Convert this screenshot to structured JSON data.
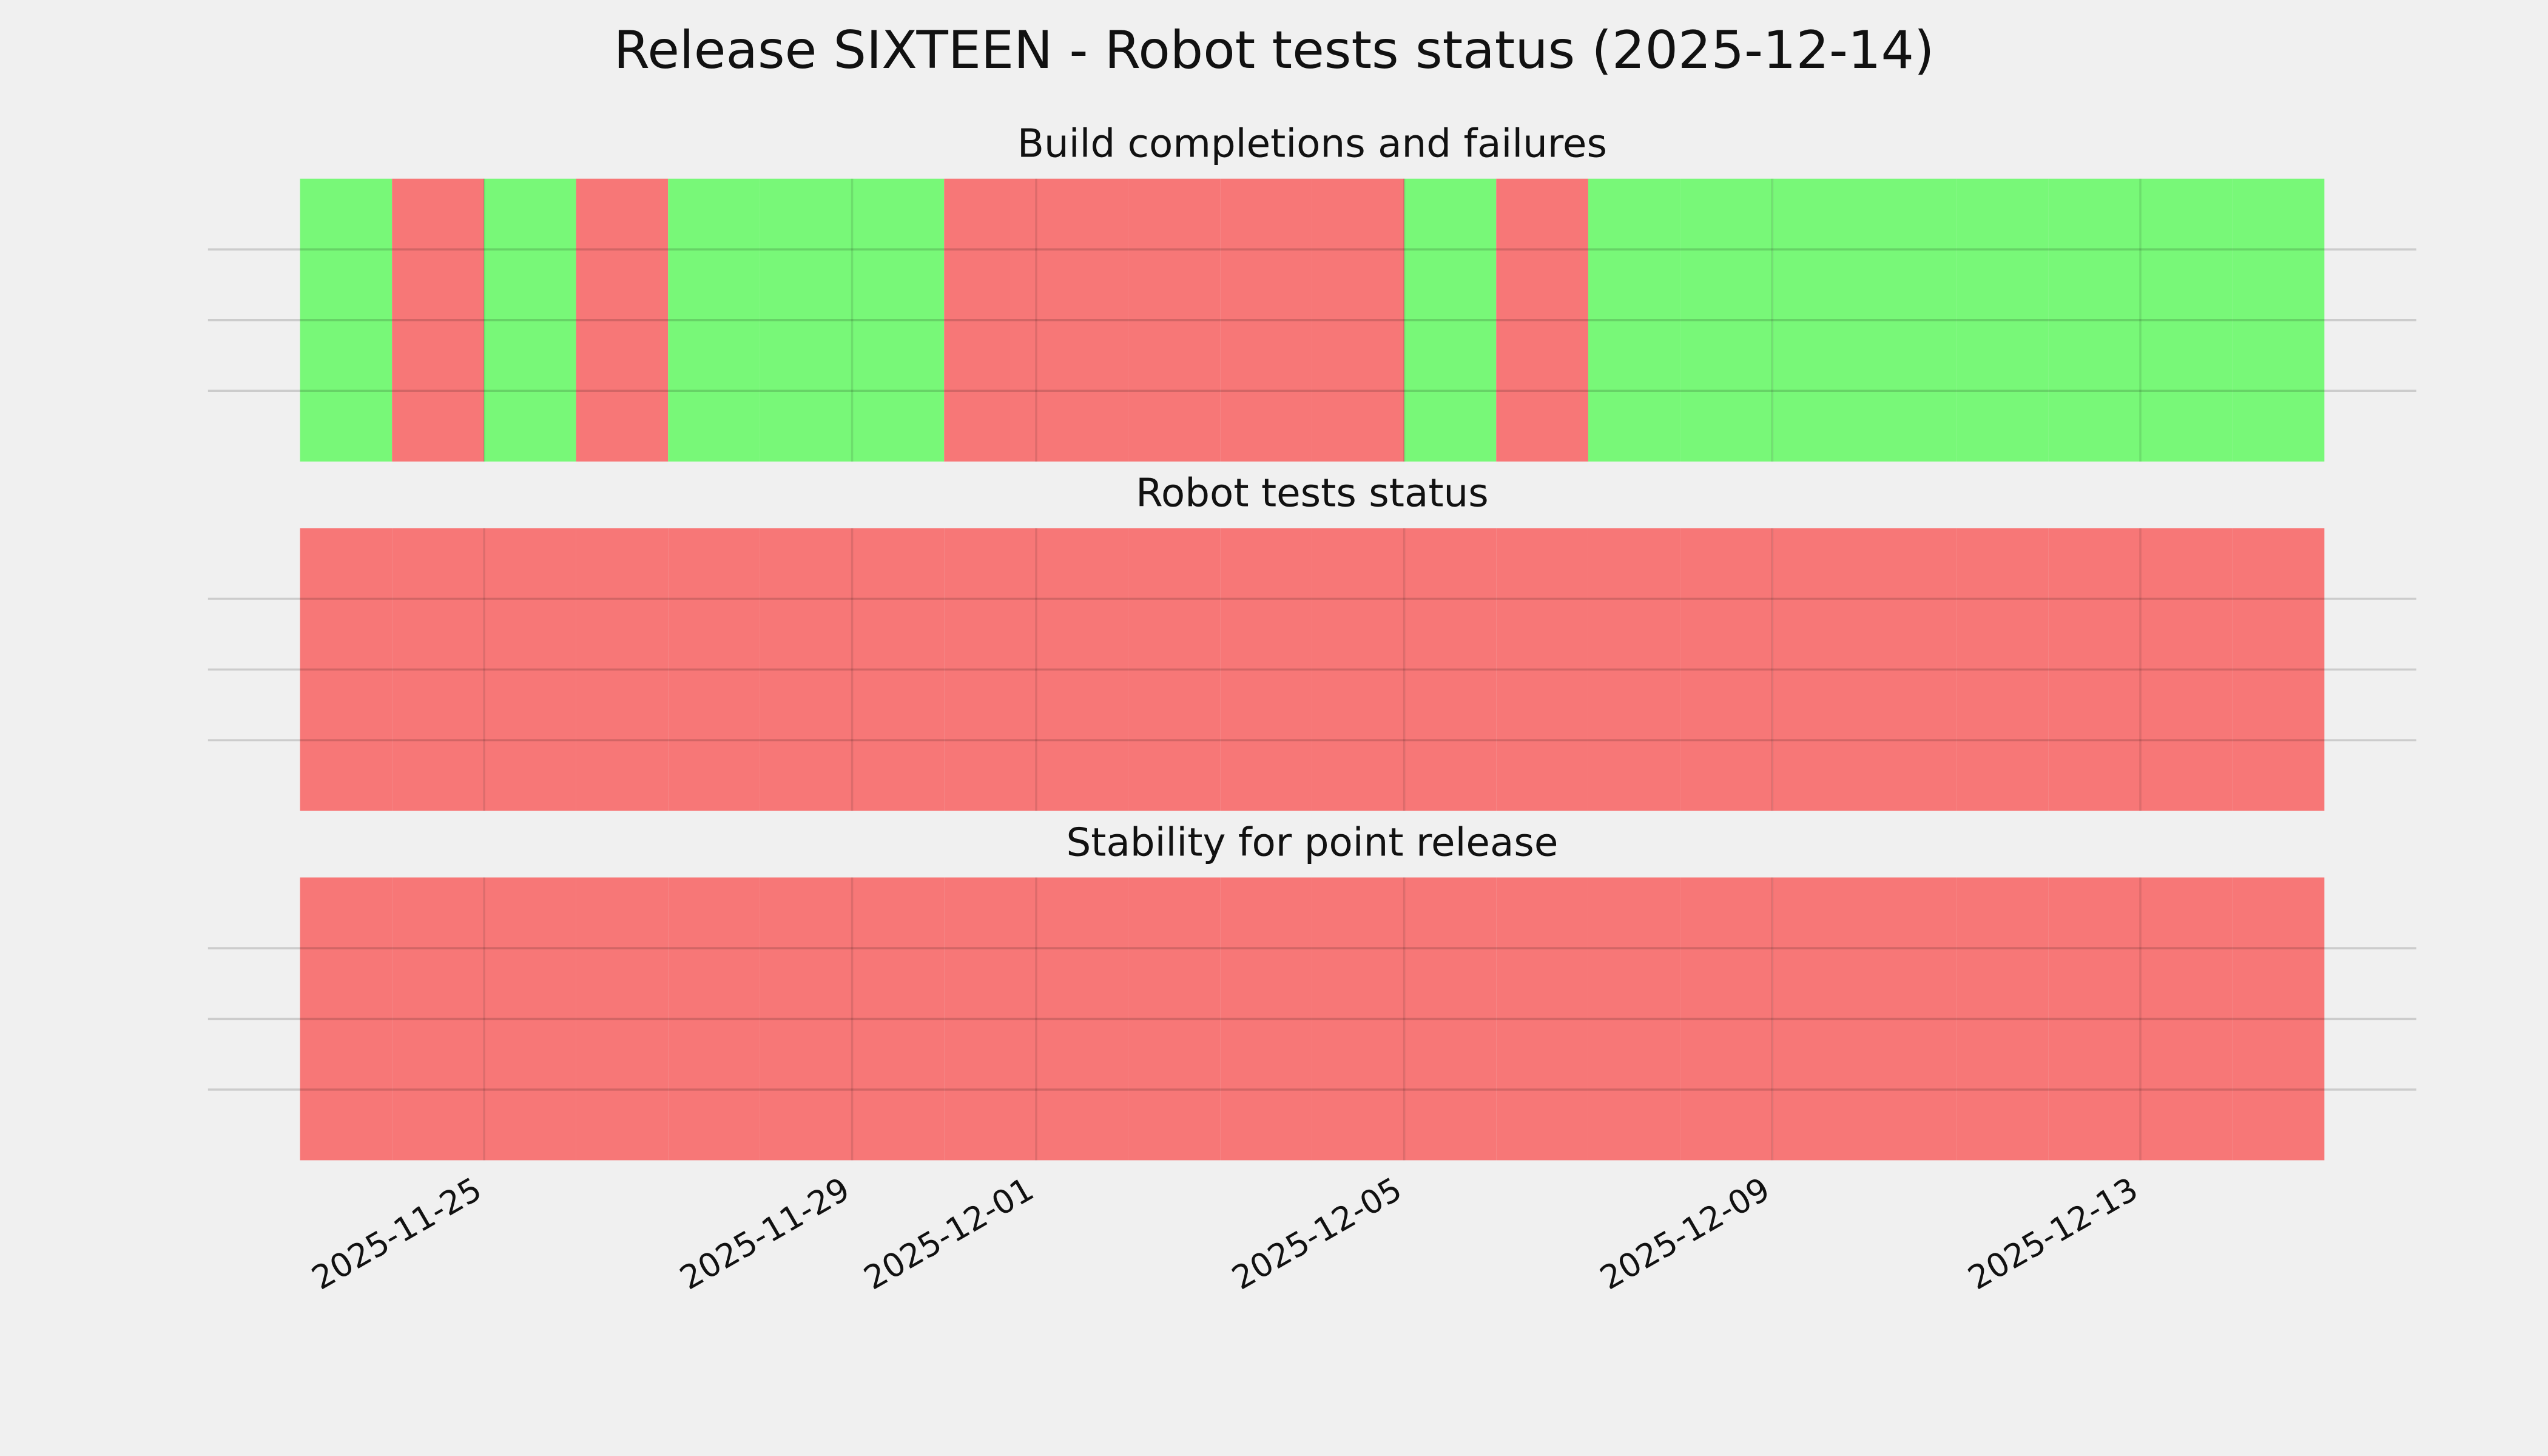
{
  "title": "Release SIXTEEN - Robot tests status (2025-12-14)",
  "chart_data": [
    {
      "type": "timeline",
      "title": "Build completions and failures",
      "x": [
        "2025-11-23",
        "2025-11-24",
        "2025-11-25",
        "2025-11-26",
        "2025-11-27",
        "2025-11-28",
        "2025-11-29",
        "2025-11-30",
        "2025-12-01",
        "2025-12-02",
        "2025-12-03",
        "2025-12-04",
        "2025-12-05",
        "2025-12-06",
        "2025-12-07",
        "2025-12-08",
        "2025-12-09",
        "2025-12-10",
        "2025-12-11",
        "2025-12-12",
        "2025-12-13",
        "2025-12-14"
      ],
      "values": [
        1,
        0,
        1,
        0,
        1,
        1,
        1,
        0,
        0,
        0,
        0,
        0,
        1,
        0,
        1,
        1,
        1,
        1,
        1,
        1,
        1,
        1
      ],
      "color_pass": "#78f878",
      "color_fail": "#f77777",
      "xlim": [
        "2025-11-22",
        "2025-12-16"
      ],
      "xticks": [
        "2025-11-25",
        "2025-11-29",
        "2025-12-01",
        "2025-12-05",
        "2025-12-09",
        "2025-12-13"
      ],
      "ylim": [
        0,
        1
      ],
      "yticks": [
        0.25,
        0.5,
        0.75
      ],
      "grid": true
    },
    {
      "type": "timeline",
      "title": "Robot tests status",
      "x": [
        "2025-11-23",
        "2025-11-24",
        "2025-11-25",
        "2025-11-26",
        "2025-11-27",
        "2025-11-28",
        "2025-11-29",
        "2025-11-30",
        "2025-12-01",
        "2025-12-02",
        "2025-12-03",
        "2025-12-04",
        "2025-12-05",
        "2025-12-06",
        "2025-12-07",
        "2025-12-08",
        "2025-12-09",
        "2025-12-10",
        "2025-12-11",
        "2025-12-12",
        "2025-12-13",
        "2025-12-14"
      ],
      "values": [
        0,
        0,
        0,
        0,
        0,
        0,
        0,
        0,
        0,
        0,
        0,
        0,
        0,
        0,
        0,
        0,
        0,
        0,
        0,
        0,
        0,
        0
      ],
      "color_pass": "#78f878",
      "color_fail": "#f77777",
      "xlim": [
        "2025-11-22",
        "2025-12-16"
      ],
      "xticks": [
        "2025-11-25",
        "2025-11-29",
        "2025-12-01",
        "2025-12-05",
        "2025-12-09",
        "2025-12-13"
      ],
      "ylim": [
        0,
        1
      ],
      "yticks": [
        0.25,
        0.5,
        0.75
      ],
      "grid": true
    },
    {
      "type": "timeline",
      "title": "Stability for point release",
      "x": [
        "2025-11-23",
        "2025-11-24",
        "2025-11-25",
        "2025-11-26",
        "2025-11-27",
        "2025-11-28",
        "2025-11-29",
        "2025-11-30",
        "2025-12-01",
        "2025-12-02",
        "2025-12-03",
        "2025-12-04",
        "2025-12-05",
        "2025-12-06",
        "2025-12-07",
        "2025-12-08",
        "2025-12-09",
        "2025-12-10",
        "2025-12-11",
        "2025-12-12",
        "2025-12-13",
        "2025-12-14"
      ],
      "values": [
        0,
        0,
        0,
        0,
        0,
        0,
        0,
        0,
        0,
        0,
        0,
        0,
        0,
        0,
        0,
        0,
        0,
        0,
        0,
        0,
        0,
        0
      ],
      "color_pass": "#78f878",
      "color_fail": "#f77777",
      "xlim": [
        "2025-11-22",
        "2025-12-16"
      ],
      "xticks": [
        "2025-11-25",
        "2025-11-29",
        "2025-12-01",
        "2025-12-05",
        "2025-12-09",
        "2025-12-13"
      ],
      "ylim": [
        0,
        1
      ],
      "yticks": [
        0.25,
        0.5,
        0.75
      ],
      "grid": true,
      "show_xtick_labels": true
    }
  ]
}
